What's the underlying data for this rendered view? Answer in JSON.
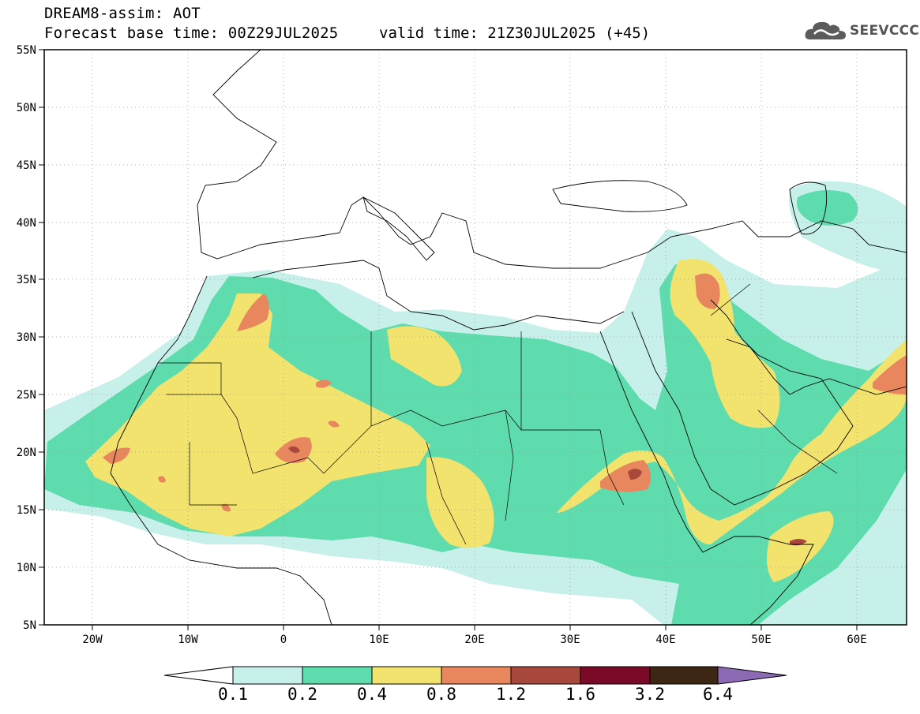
{
  "header": {
    "title": "DREAM8-assim: AOT",
    "base_time": "Forecast base time: 00Z29JUL2025",
    "valid_time": "valid time: 21Z30JUL2025 (+45)"
  },
  "logo": {
    "text": "SEEVCCC",
    "icon": "cloud-icon"
  },
  "map": {
    "lat_labels": [
      "55N",
      "50N",
      "45N",
      "40N",
      "35N",
      "30N",
      "25N",
      "20N",
      "15N",
      "10N",
      "5N"
    ],
    "lon_labels": [
      "20W",
      "10W",
      "0",
      "10E",
      "20E",
      "30E",
      "40E",
      "50E",
      "60E"
    ]
  },
  "colorbar": {
    "labels": [
      "0.1",
      "0.2",
      "0.4",
      "0.8",
      "1.2",
      "1.6",
      "3.2",
      "6.4"
    ],
    "colors": [
      "#ffffff",
      "#c8f0ea",
      "#5fdcae",
      "#f2e36e",
      "#e8875e",
      "#a8483c",
      "#7a0a28",
      "#3d2614",
      "#8c6ab4"
    ]
  }
}
